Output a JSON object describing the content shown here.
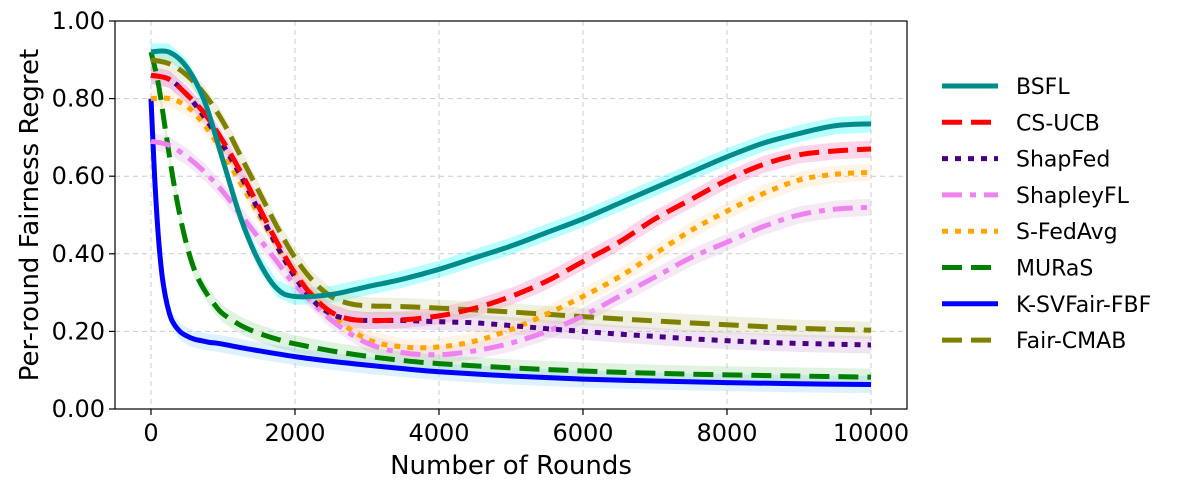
{
  "chart_data": {
    "type": "line",
    "xlabel": "Number of Rounds",
    "ylabel": "Per-round Fairness Regret",
    "xlim": [
      -500,
      10500
    ],
    "ylim": [
      0,
      1
    ],
    "x_ticks": [
      0,
      2000,
      4000,
      6000,
      8000,
      10000
    ],
    "y_ticks": [
      0,
      0.2,
      0.4,
      0.6,
      0.8,
      1.0
    ],
    "y_tick_labels": [
      "0.00",
      "0.20",
      "0.40",
      "0.60",
      "0.80",
      "1.00"
    ],
    "grid": true,
    "legend_position": "right",
    "series": [
      {
        "name": "BSFL",
        "color": "#008b8b",
        "dash": "solid",
        "band_color": "#00ffff",
        "x": [
          0,
          250,
          500,
          750,
          1000,
          1250,
          1500,
          1750,
          2000,
          2500,
          3000,
          3500,
          4000,
          4500,
          5000,
          5500,
          6000,
          6500,
          7000,
          7500,
          8000,
          8500,
          9000,
          9500,
          10000
        ],
        "values": [
          0.92,
          0.92,
          0.88,
          0.79,
          0.64,
          0.49,
          0.38,
          0.31,
          0.29,
          0.295,
          0.315,
          0.335,
          0.36,
          0.39,
          0.42,
          0.455,
          0.49,
          0.53,
          0.57,
          0.61,
          0.65,
          0.685,
          0.71,
          0.73,
          0.735
        ]
      },
      {
        "name": "CS-UCB",
        "color": "#ff0000",
        "dash": "dashed",
        "band_color": "#ff69b4",
        "x": [
          0,
          250,
          500,
          750,
          1000,
          1250,
          1500,
          1750,
          2000,
          2250,
          2500,
          2750,
          3000,
          3500,
          4000,
          4500,
          5000,
          5500,
          6000,
          6500,
          7000,
          7500,
          8000,
          8500,
          9000,
          9500,
          10000
        ],
        "values": [
          0.86,
          0.85,
          0.81,
          0.76,
          0.69,
          0.61,
          0.52,
          0.43,
          0.35,
          0.29,
          0.25,
          0.232,
          0.228,
          0.23,
          0.24,
          0.26,
          0.29,
          0.33,
          0.38,
          0.43,
          0.49,
          0.54,
          0.59,
          0.63,
          0.655,
          0.665,
          0.67
        ]
      },
      {
        "name": "ShapFed",
        "color": "#4b0082",
        "dash": "dotted",
        "band_color": "#c9a0dc",
        "x": [
          0,
          250,
          500,
          750,
          1000,
          1250,
          1500,
          1750,
          2000,
          2250,
          2500,
          2750,
          3000,
          3500,
          4000,
          4500,
          5000,
          5500,
          6000,
          6500,
          7000,
          7500,
          8000,
          8500,
          9000,
          9500,
          10000
        ],
        "values": [
          0.86,
          0.85,
          0.81,
          0.75,
          0.68,
          0.6,
          0.51,
          0.42,
          0.34,
          0.28,
          0.245,
          0.232,
          0.228,
          0.228,
          0.225,
          0.222,
          0.215,
          0.207,
          0.2,
          0.193,
          0.187,
          0.181,
          0.176,
          0.172,
          0.169,
          0.167,
          0.165
        ]
      },
      {
        "name": "ShapleyFL",
        "color": "#ee82ee",
        "dash": "dashdot",
        "band_color": "#e0b0e0",
        "x": [
          0,
          250,
          500,
          750,
          1000,
          1250,
          1500,
          1750,
          2000,
          2500,
          3000,
          3500,
          4000,
          4500,
          5000,
          5500,
          6000,
          6500,
          7000,
          7500,
          8000,
          8500,
          9000,
          9500,
          10000
        ],
        "values": [
          0.69,
          0.68,
          0.65,
          0.61,
          0.56,
          0.5,
          0.44,
          0.38,
          0.32,
          0.23,
          0.17,
          0.145,
          0.14,
          0.15,
          0.17,
          0.2,
          0.24,
          0.29,
          0.34,
          0.39,
          0.43,
          0.47,
          0.5,
          0.515,
          0.52
        ]
      },
      {
        "name": "S-FedAvg",
        "color": "#ffa500",
        "dash": "dotted",
        "band_color": "#ffd9a0",
        "x": [
          0,
          250,
          500,
          750,
          1000,
          1250,
          1500,
          1750,
          2000,
          2500,
          3000,
          3500,
          4000,
          4500,
          5000,
          5500,
          6000,
          6500,
          7000,
          7500,
          8000,
          8500,
          9000,
          9500,
          10000
        ],
        "values": [
          0.8,
          0.8,
          0.78,
          0.73,
          0.66,
          0.58,
          0.5,
          0.42,
          0.35,
          0.245,
          0.18,
          0.16,
          0.16,
          0.175,
          0.205,
          0.245,
          0.29,
          0.34,
          0.4,
          0.46,
          0.51,
          0.555,
          0.59,
          0.605,
          0.61
        ]
      },
      {
        "name": "MURaS",
        "color": "#008000",
        "dash": "dashed",
        "band_color": "#90d090",
        "x": [
          0,
          100,
          200,
          300,
          400,
          500,
          600,
          700,
          800,
          900,
          1000,
          1250,
          1500,
          1750,
          2000,
          2500,
          3000,
          3500,
          4000,
          5000,
          6000,
          7000,
          8000,
          9000,
          10000
        ],
        "values": [
          0.92,
          0.84,
          0.72,
          0.6,
          0.5,
          0.42,
          0.36,
          0.32,
          0.29,
          0.265,
          0.245,
          0.215,
          0.195,
          0.18,
          0.168,
          0.15,
          0.136,
          0.125,
          0.117,
          0.106,
          0.098,
          0.092,
          0.088,
          0.085,
          0.082
        ]
      },
      {
        "name": "K-SVFair-FBF",
        "color": "#0000ff",
        "dash": "solid",
        "band_color": "#87cefa",
        "x": [
          0,
          50,
          100,
          150,
          200,
          250,
          300,
          400,
          500,
          600,
          700,
          800,
          900,
          1000,
          1250,
          1500,
          2000,
          2500,
          3000,
          3500,
          4000,
          5000,
          6000,
          7000,
          8000,
          9000,
          10000
        ],
        "values": [
          0.8,
          0.6,
          0.45,
          0.35,
          0.29,
          0.25,
          0.225,
          0.2,
          0.188,
          0.18,
          0.176,
          0.172,
          0.17,
          0.167,
          0.158,
          0.15,
          0.135,
          0.123,
          0.113,
          0.104,
          0.096,
          0.085,
          0.077,
          0.072,
          0.068,
          0.065,
          0.063
        ]
      },
      {
        "name": "Fair-CMAB",
        "color": "#808000",
        "dash": "dashed",
        "band_color": "#c8c890",
        "x": [
          0,
          250,
          500,
          750,
          1000,
          1250,
          1500,
          1750,
          2000,
          2250,
          2500,
          2750,
          3000,
          3500,
          4000,
          5000,
          6000,
          7000,
          8000,
          9000,
          10000
        ],
        "values": [
          0.9,
          0.89,
          0.86,
          0.81,
          0.74,
          0.65,
          0.56,
          0.47,
          0.39,
          0.33,
          0.29,
          0.272,
          0.266,
          0.264,
          0.26,
          0.25,
          0.238,
          0.227,
          0.217,
          0.208,
          0.203
        ]
      }
    ]
  }
}
